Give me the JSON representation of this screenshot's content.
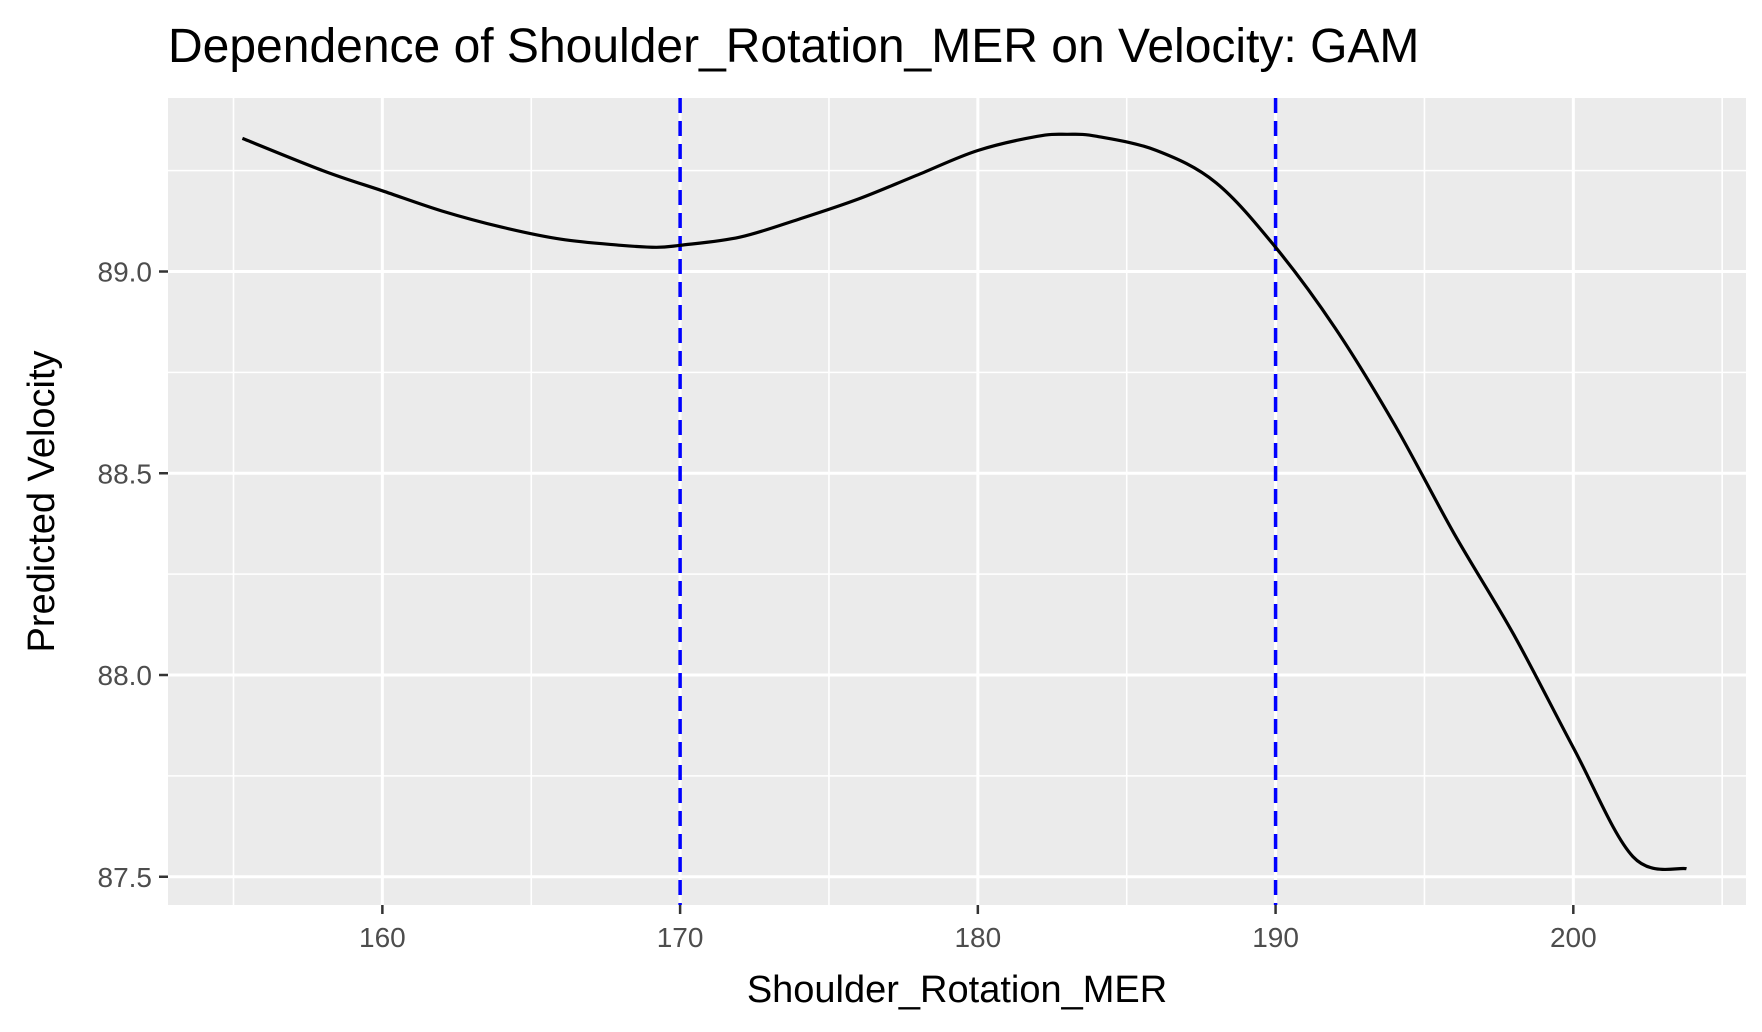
{
  "chart_data": {
    "type": "line",
    "title": "Dependence of Shoulder_Rotation_MER on Velocity: GAM",
    "xlabel": "Shoulder_Rotation_MER",
    "ylabel": "Predicted Velocity",
    "xlim": [
      152.8,
      205.8
    ],
    "ylim": [
      87.43,
      89.43
    ],
    "x_ticks": [
      160,
      170,
      180,
      190,
      200
    ],
    "x_tick_labels": [
      "160",
      "170",
      "180",
      "190",
      "200"
    ],
    "y_ticks": [
      87.5,
      88.0,
      88.5,
      89.0
    ],
    "y_tick_labels": [
      "87.5",
      "88.0",
      "88.5",
      "89.0"
    ],
    "grid": true,
    "background": "#ebebeb",
    "series": [
      {
        "color": "#000000",
        "x": [
          155.3,
          158,
          160,
          162,
          164,
          166,
          168,
          169.2,
          170,
          172,
          174,
          176,
          178,
          180,
          182,
          183,
          184,
          186,
          188,
          190,
          192,
          194,
          196,
          198,
          200,
          202,
          203.8
        ],
        "y": [
          89.33,
          89.25,
          89.2,
          89.15,
          89.11,
          89.08,
          89.065,
          89.06,
          89.065,
          89.085,
          89.13,
          89.18,
          89.24,
          89.3,
          89.335,
          89.34,
          89.335,
          89.3,
          89.22,
          89.06,
          88.86,
          88.62,
          88.35,
          88.1,
          87.82,
          87.55,
          87.52
        ]
      }
    ],
    "vlines": [
      {
        "x": 170,
        "color": "#0000ff",
        "style": "dashed"
      },
      {
        "x": 190,
        "color": "#0000ff",
        "style": "dashed"
      }
    ]
  }
}
